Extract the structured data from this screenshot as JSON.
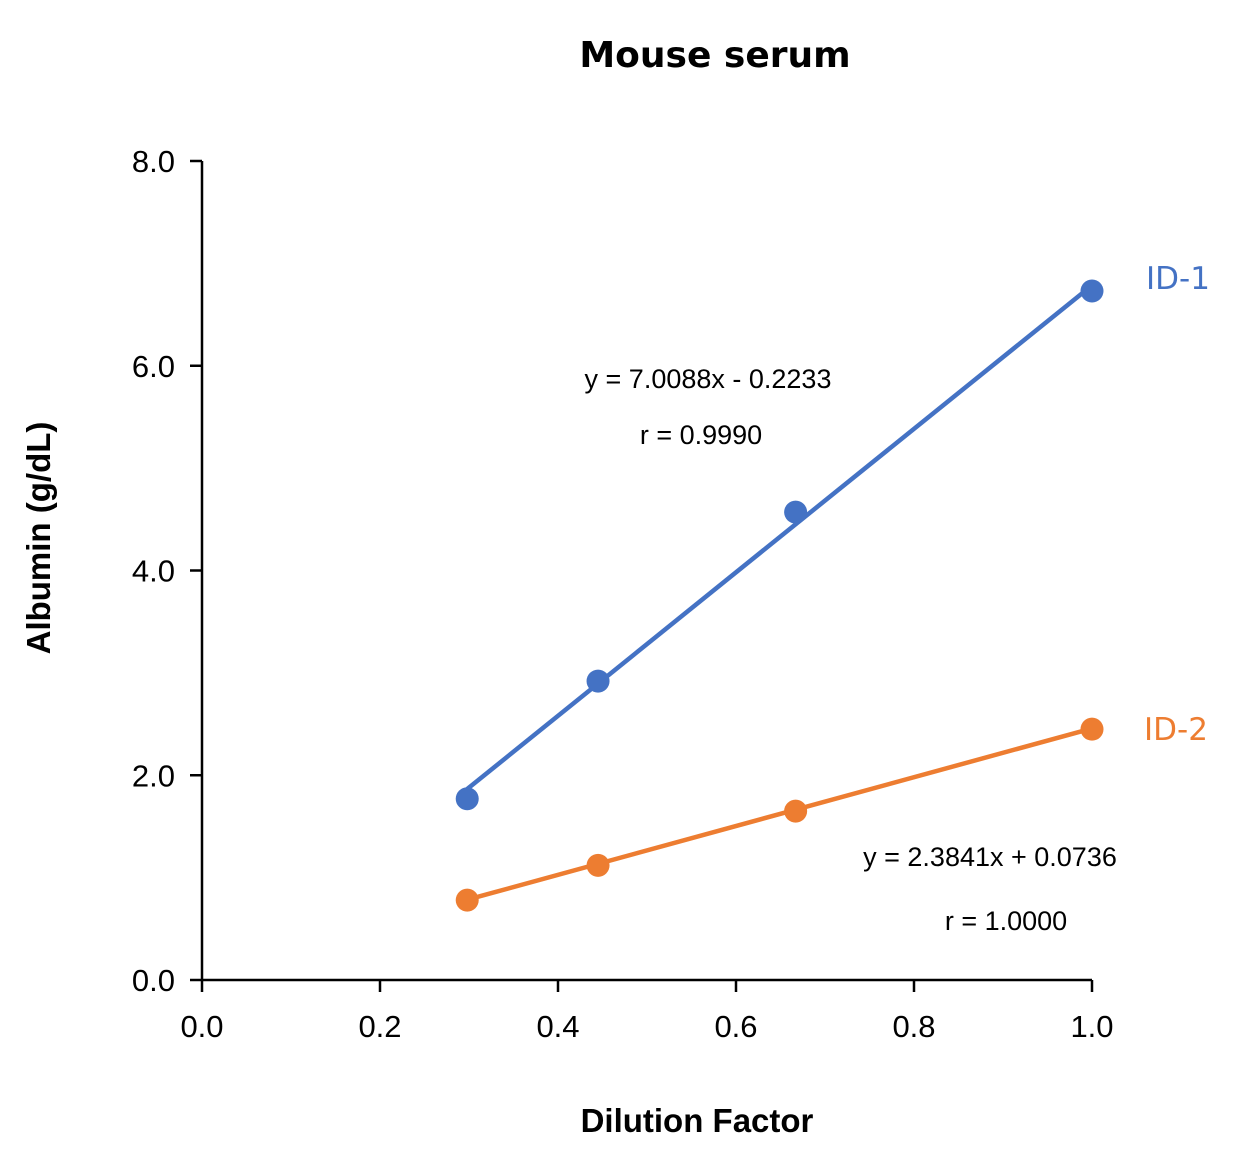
{
  "chart_data": {
    "type": "scatter",
    "title": "Mouse serum",
    "xlabel": "Dilution Factor",
    "ylabel": "Albumin (g/dL)",
    "xlim": [
      0,
      1.0
    ],
    "ylim": [
      0,
      8.0
    ],
    "x_ticks": [
      "0.0",
      "0.2",
      "0.4",
      "0.6",
      "0.8",
      "1.0"
    ],
    "y_ticks": [
      "0.0",
      "2.0",
      "4.0",
      "6.0",
      "8.0"
    ],
    "grid": false,
    "series": [
      {
        "name": "ID-1",
        "color": "#4472C4",
        "x": [
          0.298,
          0.445,
          0.667,
          1.0
        ],
        "y": [
          1.77,
          2.92,
          4.57,
          6.73
        ],
        "trendline": {
          "slope": 7.0088,
          "intercept": -0.2233
        },
        "equation": "y = 7.0088x - 0.2233",
        "r": "r = 0.9990"
      },
      {
        "name": "ID-2",
        "color": "#ED7D31",
        "x": [
          0.298,
          0.445,
          0.667,
          1.0
        ],
        "y": [
          0.78,
          1.12,
          1.65,
          2.45
        ],
        "trendline": {
          "slope": 2.3841,
          "intercept": 0.0736
        },
        "equation": "y = 2.3841x + 0.0736",
        "r": "r = 1.0000"
      }
    ]
  }
}
